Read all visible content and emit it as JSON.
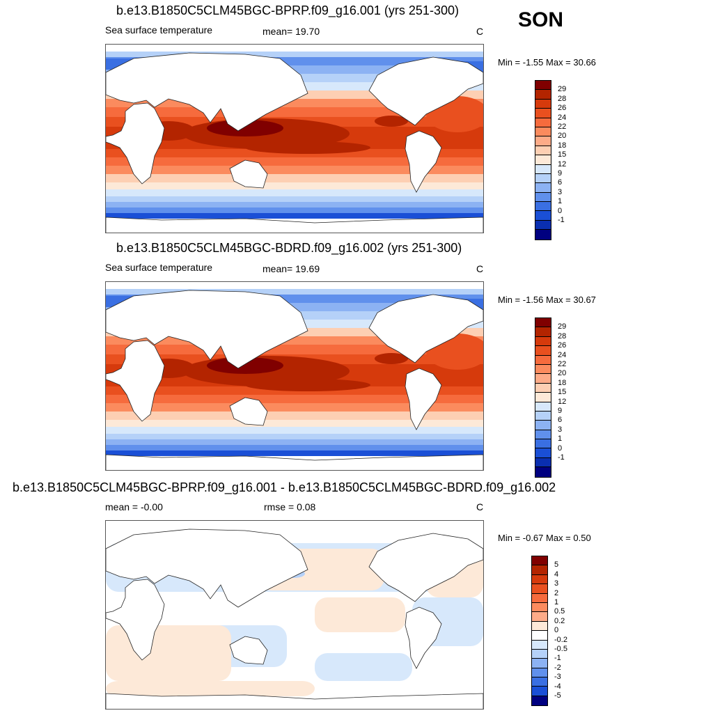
{
  "season": "SON",
  "panels": [
    {
      "title": "b.e13.B1850C5CLM45BGC-BPRP.f09_g16.001 (yrs 251-300)",
      "left_label": "Sea surface temperature",
      "center_label": "mean=  19.70",
      "units": "C",
      "minmax": "Min =  -1.55 Max =  30.66",
      "colorbar": {
        "labels": [
          "29",
          "28",
          "26",
          "24",
          "22",
          "20",
          "18",
          "15",
          "12",
          "9",
          "6",
          "3",
          "1",
          "0",
          "-1"
        ],
        "colors": [
          "#800000",
          "#b32400",
          "#d63a0c",
          "#e9501f",
          "#f66b3d",
          "#fb8b5e",
          "#fdab88",
          "#fdcfb3",
          "#fde9d8",
          "#d7e8fb",
          "#b5d1f8",
          "#8cb2f3",
          "#6090ec",
          "#3a6fe2",
          "#1a4fd6",
          "#0a2fb0",
          "#000080"
        ]
      }
    },
    {
      "title": "b.e13.B1850C5CLM45BGC-BDRD.f09_g16.002 (yrs 251-300)",
      "left_label": "Sea surface temperature",
      "center_label": "mean=  19.69",
      "units": "C",
      "minmax": "Min =  -1.56 Max =  30.67",
      "colorbar": {
        "labels": [
          "29",
          "28",
          "26",
          "24",
          "22",
          "20",
          "18",
          "15",
          "12",
          "9",
          "6",
          "3",
          "1",
          "0",
          "-1"
        ],
        "colors": [
          "#800000",
          "#b32400",
          "#d63a0c",
          "#e9501f",
          "#f66b3d",
          "#fb8b5e",
          "#fdab88",
          "#fdcfb3",
          "#fde9d8",
          "#d7e8fb",
          "#b5d1f8",
          "#8cb2f3",
          "#6090ec",
          "#3a6fe2",
          "#1a4fd6",
          "#0a2fb0",
          "#000080"
        ]
      }
    },
    {
      "title": "b.e13.B1850C5CLM45BGC-BPRP.f09_g16.001 - b.e13.B1850C5CLM45BGC-BDRD.f09_g16.002",
      "left_label": "mean =  -0.00",
      "center_label": "rmse =   0.08",
      "units": "C",
      "minmax": "Min =  -0.67 Max =   0.50",
      "colorbar": {
        "labels": [
          "5",
          "4",
          "3",
          "2",
          "1",
          "0.5",
          "0.2",
          "0",
          "-0.2",
          "-0.5",
          "-1",
          "-2",
          "-3",
          "-4",
          "-5"
        ],
        "colors": [
          "#800000",
          "#b32400",
          "#d63a0c",
          "#e9501f",
          "#f66b3d",
          "#fb8b5e",
          "#fdab88",
          "#fde9d8",
          "#ffffff",
          "#d7e8fb",
          "#b5d1f8",
          "#8cb2f3",
          "#6090ec",
          "#3a6fe2",
          "#1a4fd6",
          "#000080"
        ]
      }
    }
  ],
  "chart_data": [
    {
      "type": "heatmap",
      "title": "b.e13.B1850C5CLM45BGC-BPRP.f09_g16.001 (yrs 251-300)",
      "variable": "Sea surface temperature",
      "units": "C",
      "mean": 19.7,
      "min": -1.55,
      "max": 30.66,
      "contour_levels": [
        -1,
        0,
        1,
        3,
        6,
        9,
        12,
        15,
        18,
        20,
        22,
        24,
        26,
        28,
        29
      ],
      "lon_range": [
        0,
        360
      ],
      "lat_range": [
        -90,
        90
      ]
    },
    {
      "type": "heatmap",
      "title": "b.e13.B1850C5CLM45BGC-BDRD.f09_g16.002 (yrs 251-300)",
      "variable": "Sea surface temperature",
      "units": "C",
      "mean": 19.69,
      "min": -1.56,
      "max": 30.67,
      "contour_levels": [
        -1,
        0,
        1,
        3,
        6,
        9,
        12,
        15,
        18,
        20,
        22,
        24,
        26,
        28,
        29
      ],
      "lon_range": [
        0,
        360
      ],
      "lat_range": [
        -90,
        90
      ]
    },
    {
      "type": "heatmap",
      "title": "b.e13.B1850C5CLM45BGC-BPRP.f09_g16.001 - b.e13.B1850C5CLM45BGC-BDRD.f09_g16.002",
      "units": "C",
      "mean": -0.0,
      "rmse": 0.08,
      "min": -0.67,
      "max": 0.5,
      "contour_levels": [
        -5,
        -4,
        -3,
        -2,
        -1,
        -0.5,
        -0.2,
        0,
        0.2,
        0.5,
        1,
        2,
        3,
        4,
        5
      ],
      "lon_range": [
        0,
        360
      ],
      "lat_range": [
        -90,
        90
      ]
    }
  ]
}
